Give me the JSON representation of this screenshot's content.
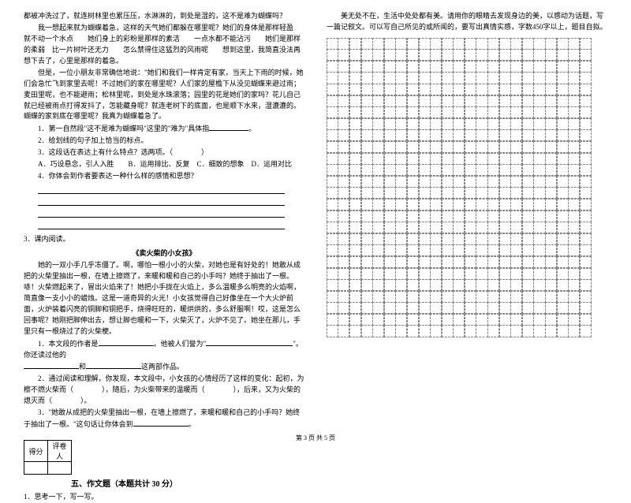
{
  "col1": {
    "p1": "都被冲洗过了，就连树林里也累压压，水淋淋的，到处是湿的，这不是难为蝴蝶吗？",
    "p2": "我一想起来就为蝴蝶着急，这样的天气她们都躲在哪里呢？她们的身体是那样轻盈　就不动一个水点　　她们身上的彩粉是那样的素洁　　一点水都不能沾污　　她们是那样的柔弱　比一片树叶还无力　　怎么禁得住这猛烈的风雨呢　　想到这里，我简直没法再想下去了，心里是那样的着急。",
    "p3": "但是，一位小朋友非常确信地说：\"她们和我们一样肯定有家，当天上下雨的时候，她们会急忙飞到家里去呢！不过她们的家在哪里呢？人们家的屋檐下从没见蝴蝶来避过雨；麦田里呢，也不能避雨；松林里呢，到处是水珠滚落；园里的花是她们的家吗？花儿自己就已经被雨点打得发抖了，怎能藏身呢？就连老树下的底面，也是顺下水来，湿漉漉的。蝴蝶的家到底在哪里呢？我真为蝴蝶着急了。",
    "q1": "1．第一自然段\"这不是难为蝴蝶吗\"这里的\"难为\"具体指",
    "q2": "2．给划线的句子加上恰当的标点。",
    "q3": "3．这段话在表达上有什么特点？选两项。（　　　　）",
    "q3a": "A．巧设悬念，引人入胜　　B．运用排比、反复　C．细致的想象　D．运用对比",
    "q4": "4．你体会到作者要表达一种什么样的感情和思想？",
    "reading3": "3．课内阅读。",
    "storyTitle": "《卖火柴的小女孩》",
    "sp1": "她的一双小手几乎冻僵了。啊，哪怕一根小小的火柴，对她也是有好处的！她敢从成把的火柴里抽出一根，在墙上擦燃了，来暖和暖和自己的小手吗？她终于抽出了一根。哧！火柴燃起来了，冒出火焰来了！她把小手拢在火焰上，多么温暖多么明亮的火焰啊，简直像一支小小的蜡烛。这是一道奇异的火光！小女孩觉得自己好像坐在一个大火炉前面，火炉装着闪亮的铜脚和铜把手，烧得旺旺的，暖烘烘的，多么舒服啊！哎，这是怎么回事呢？她刚把脚伸出去，想让脚也暖和一下，火柴灭了，火炉不见了。她坐在那儿，手里只有一根烧过了的火柴梗。",
    "sq1a": "1．本文段的作者是",
    "sq1b": "，他被人们誉为\"",
    "sq1c": "\"。你还读过他的",
    "sq1d": "和",
    "sq1e": "这两部作品。",
    "sq2": "2．通过阅读和理解，你发现，本文段中，小女孩的心情经历了这样的变化：起初，为檫不燃火柴而（　　　　），随后，为火柴带来的温暖而（　　　　），后来，又为火柴的熄灭而（　　　　）。",
    "sq3a": "3．\"她敢从成把的火柴里抽出一根，在墙上擦燃了，来暖和暖和自己的小手吗？她终于抽出了一根。\"这句话让你体会到",
    "scoreLabels": {
      "a": "得分",
      "b": "评卷人"
    },
    "sectionTitle": "五、作文题（本题共计 30 分）",
    "writePrompt": "1．思考一下，写一写。"
  },
  "col2": {
    "intro": "美无处不在，生活中处处都有美。请用你的眼睛去发现身边的美，以感动为话题，写一篇记叙文。可以写自己所见的或所闻的，要写出真情实感，字数450字以上，题目自拟。"
  },
  "grid": {
    "rows": 26,
    "cols": 23
  },
  "footer": "第 3 页  共 5 页"
}
